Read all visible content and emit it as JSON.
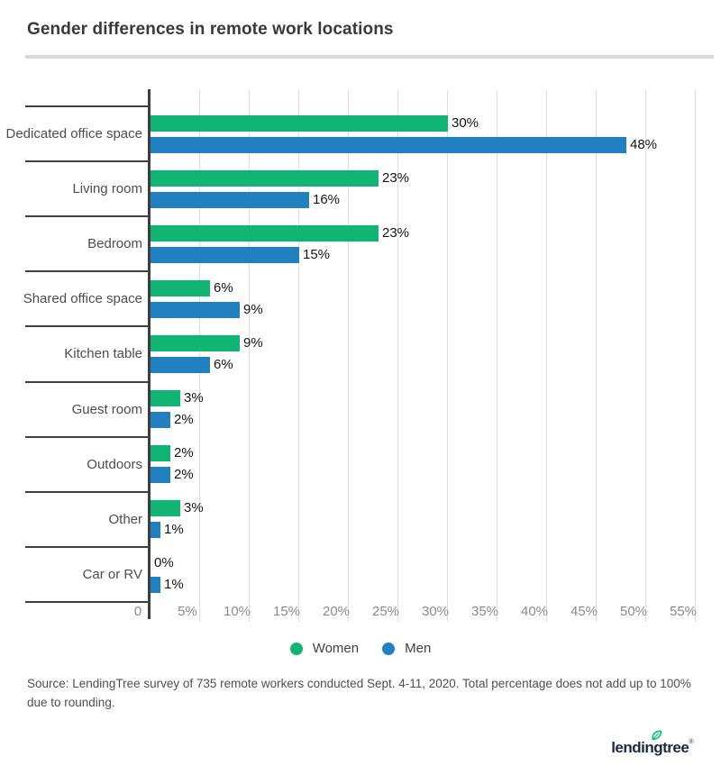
{
  "title": "Gender differences in remote work locations",
  "chart_data": {
    "type": "bar",
    "orientation": "horizontal",
    "title": "Gender differences in remote work locations",
    "categories": [
      "Dedicated office space",
      "Living room",
      "Bedroom",
      "Shared office space",
      "Kitchen table",
      "Guest room",
      "Outdoors",
      "Other",
      "Car or RV"
    ],
    "series": [
      {
        "name": "Women",
        "color": "#10b573",
        "values": [
          30,
          23,
          23,
          6,
          9,
          3,
          2,
          3,
          0
        ]
      },
      {
        "name": "Men",
        "color": "#2180c0",
        "values": [
          48,
          16,
          15,
          9,
          6,
          2,
          2,
          1,
          1
        ]
      }
    ],
    "value_label_suffix": "%",
    "x_ticks": [
      "0",
      "5%",
      "10%",
      "15%",
      "20%",
      "25%",
      "30%",
      "35%",
      "40%",
      "45%",
      "50%",
      "55%"
    ],
    "xlim": [
      0,
      55
    ],
    "grid": true,
    "legend_position": "bottom",
    "colors": {
      "axis": "#3e3e3e",
      "gridline": "#dedede",
      "category_label": "#4d4d4d",
      "tick_label": "#8a8a8a",
      "value_label": "#141414"
    }
  },
  "legend": {
    "items": [
      {
        "label": "Women",
        "color": "#10b573"
      },
      {
        "label": "Men",
        "color": "#2180c0"
      }
    ]
  },
  "source_note": "Source: LendingTree survey of 735 remote workers conducted Sept. 4-11, 2020. Total percentage does not add up to 100% due to rounding.",
  "logo": {
    "text": "lendingtree",
    "trademark": "®",
    "navy": "#1b2a41",
    "leaf_green": "#0bbf75"
  }
}
